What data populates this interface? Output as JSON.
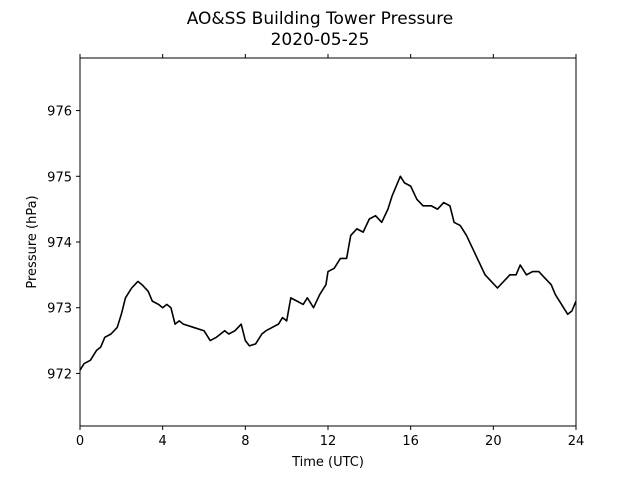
{
  "chart_data": {
    "type": "line",
    "title": "AO&SS Building Tower Pressure",
    "subtitle": "2020-05-25",
    "xlabel": "Time (UTC)",
    "ylabel": "Pressure (hPa)",
    "xlim": [
      0,
      24
    ],
    "xticks": [
      0,
      4,
      8,
      12,
      16,
      20,
      24
    ],
    "ylim": [
      971.2,
      976.8
    ],
    "yticks": [
      972,
      973,
      974,
      975,
      976
    ],
    "x": [
      0,
      0.2,
      0.5,
      0.8,
      1.0,
      1.2,
      1.5,
      1.8,
      2.0,
      2.2,
      2.5,
      2.8,
      3.0,
      3.3,
      3.5,
      3.8,
      4.0,
      4.2,
      4.4,
      4.6,
      4.8,
      5.0,
      5.5,
      6.0,
      6.3,
      6.6,
      7.0,
      7.2,
      7.5,
      7.8,
      8.0,
      8.2,
      8.5,
      8.8,
      9.0,
      9.3,
      9.6,
      9.8,
      10.0,
      10.2,
      10.5,
      10.8,
      11.0,
      11.3,
      11.6,
      11.9,
      12.0,
      12.3,
      12.6,
      12.9,
      13.1,
      13.4,
      13.7,
      14.0,
      14.3,
      14.6,
      14.9,
      15.1,
      15.3,
      15.5,
      15.7,
      16.0,
      16.3,
      16.6,
      17.0,
      17.3,
      17.6,
      17.9,
      18.1,
      18.4,
      18.7,
      19.0,
      19.3,
      19.6,
      19.9,
      20.2,
      20.5,
      20.8,
      21.1,
      21.3,
      21.6,
      21.9,
      22.2,
      22.5,
      22.8,
      23.0,
      23.3,
      23.6,
      23.8,
      24.0
    ],
    "series": [
      {
        "name": "Pressure",
        "color": "#000000",
        "values": [
          972.05,
          972.15,
          972.2,
          972.35,
          972.4,
          972.55,
          972.6,
          972.7,
          972.9,
          973.15,
          973.3,
          973.4,
          973.35,
          973.25,
          973.1,
          973.05,
          973.0,
          973.05,
          973.0,
          972.75,
          972.8,
          972.75,
          972.7,
          972.65,
          972.5,
          972.55,
          972.65,
          972.6,
          972.65,
          972.75,
          972.5,
          972.42,
          972.45,
          972.6,
          972.65,
          972.7,
          972.75,
          972.85,
          972.8,
          973.15,
          973.1,
          973.05,
          973.15,
          973.0,
          973.2,
          973.35,
          973.55,
          973.6,
          973.75,
          973.75,
          974.1,
          974.2,
          974.15,
          974.35,
          974.4,
          974.3,
          974.5,
          974.7,
          974.85,
          975.0,
          974.9,
          974.85,
          974.65,
          974.55,
          974.55,
          974.5,
          974.6,
          974.55,
          974.3,
          974.25,
          974.1,
          973.9,
          973.7,
          973.5,
          973.4,
          973.3,
          973.4,
          973.5,
          973.5,
          973.65,
          973.5,
          973.55,
          973.55,
          973.45,
          973.35,
          973.2,
          973.05,
          972.9,
          972.95,
          973.1
        ]
      }
    ]
  }
}
